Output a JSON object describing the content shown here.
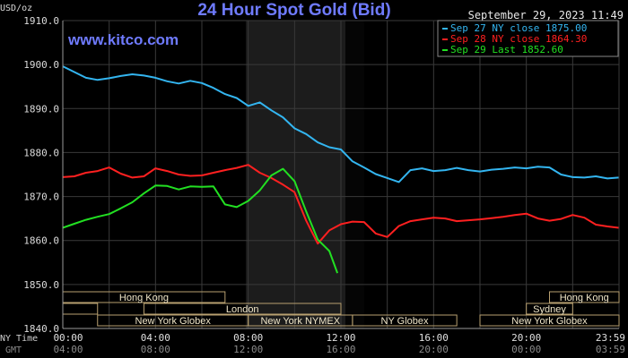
{
  "chart_data": {
    "type": "line",
    "title": "24 Hour Spot Gold (Bid)",
    "watermark": "www.kitco.com",
    "timestamp": "September 29, 2023 11:49",
    "y_unit_label": "USD/oz",
    "ylim": [
      1840,
      1910
    ],
    "yticks": [
      "1910.0",
      "1900.0",
      "1890.0",
      "1880.0",
      "1870.0",
      "1860.0",
      "1850.0",
      "1840.0"
    ],
    "xlim": [
      0,
      24
    ],
    "xticks_ny": [
      "00:00",
      "04:00",
      "08:00",
      "12:00",
      "16:00",
      "20:00",
      "23:59"
    ],
    "xticks_gmt": [
      "04:00",
      "08:00",
      "12:00",
      "16:00",
      "20:00",
      "00:00",
      "03:59"
    ],
    "xaxis_row_labels": [
      "NY Time",
      "GMT"
    ],
    "shaded_x_range": [
      7.9,
      12.2
    ],
    "dark_band_x_range": [
      12.2,
      13.0
    ],
    "grid": true,
    "legend_position": "top-right",
    "legend": [
      {
        "label": "Sep 27 NY close 1875.00",
        "color": "#33b5f0"
      },
      {
        "label": "Sep 28 NY close 1864.30",
        "color": "#ff2020"
      },
      {
        "label": "Sep 29 Last 1852.60",
        "color": "#22e022"
      }
    ],
    "series": [
      {
        "name": "Sep 27 NY close 1875.00",
        "color": "#33b5f0",
        "x": [
          0,
          0.5,
          1,
          1.5,
          2,
          2.5,
          3,
          3.5,
          4,
          4.5,
          5,
          5.5,
          6,
          6.5,
          7,
          7.5,
          8,
          8.5,
          9,
          9.5,
          10,
          10.5,
          11,
          11.5,
          12,
          12.5,
          13,
          13.5,
          14,
          14.5,
          15,
          15.5,
          16,
          16.5,
          17,
          17.5,
          18,
          18.5,
          19,
          19.5,
          20,
          20.5,
          21,
          21.5,
          22,
          22.5,
          23,
          23.5,
          23.98
        ],
        "values": [
          1899.6,
          1898.3,
          1897.0,
          1896.5,
          1896.9,
          1897.4,
          1897.8,
          1897.5,
          1897.0,
          1896.2,
          1895.7,
          1896.3,
          1895.8,
          1894.7,
          1893.3,
          1892.4,
          1890.6,
          1891.4,
          1889.6,
          1888.0,
          1885.5,
          1884.2,
          1882.3,
          1881.2,
          1880.7,
          1878.0,
          1876.6,
          1875.1,
          1874.2,
          1873.3,
          1876.0,
          1876.4,
          1875.8,
          1876.0,
          1876.5,
          1876.0,
          1875.7,
          1876.1,
          1876.3,
          1876.6,
          1876.4,
          1876.8,
          1876.6,
          1875.0,
          1874.4,
          1874.3,
          1874.6,
          1874.1,
          1874.3
        ]
      },
      {
        "name": "Sep 28 NY close 1864.30",
        "color": "#ff2020",
        "x": [
          0,
          0.5,
          1,
          1.5,
          2,
          2.5,
          3,
          3.5,
          4,
          4.5,
          5,
          5.5,
          6,
          6.5,
          7,
          7.5,
          8,
          8.5,
          9,
          9.5,
          10,
          10.5,
          11,
          11.5,
          12,
          12.5,
          13,
          13.5,
          14,
          14.5,
          15,
          15.5,
          16,
          16.5,
          17,
          17.5,
          18,
          18.5,
          19,
          19.5,
          20,
          20.5,
          21,
          21.5,
          22,
          22.5,
          23,
          23.5,
          23.98
        ],
        "values": [
          1874.4,
          1874.6,
          1875.4,
          1875.8,
          1876.6,
          1875.2,
          1874.3,
          1874.6,
          1876.4,
          1875.8,
          1875.0,
          1874.7,
          1874.8,
          1875.4,
          1876.0,
          1876.5,
          1877.2,
          1875.4,
          1874.2,
          1872.7,
          1871.0,
          1864.5,
          1859.3,
          1862.3,
          1863.7,
          1864.3,
          1864.2,
          1861.6,
          1860.8,
          1863.3,
          1864.4,
          1864.8,
          1865.2,
          1865.0,
          1864.4,
          1864.6,
          1864.8,
          1865.1,
          1865.4,
          1865.8,
          1866.1,
          1865.0,
          1864.5,
          1864.9,
          1865.8,
          1865.2,
          1863.6,
          1863.2,
          1862.9
        ]
      },
      {
        "name": "Sep 29 Last 1852.60",
        "color": "#22e022",
        "x": [
          0,
          0.5,
          1,
          1.5,
          2,
          2.5,
          3,
          3.5,
          4,
          4.5,
          5,
          5.5,
          6,
          6.5,
          7,
          7.5,
          8,
          8.5,
          9,
          9.5,
          10,
          10.5,
          11,
          11.5,
          11.85
        ],
        "values": [
          1862.9,
          1863.8,
          1864.7,
          1865.4,
          1866.0,
          1867.3,
          1868.7,
          1870.7,
          1872.5,
          1872.4,
          1871.6,
          1872.3,
          1872.2,
          1872.3,
          1868.2,
          1867.6,
          1869.0,
          1871.4,
          1874.8,
          1876.3,
          1873.5,
          1866.6,
          1860.2,
          1857.6,
          1852.6
        ]
      }
    ],
    "session_bands": [
      {
        "label": "Hong Kong",
        "x_start": 0,
        "x_end": 7.0,
        "row": 1
      },
      {
        "label": "",
        "x_start": 0,
        "x_end": 1.5,
        "row": 2
      },
      {
        "label": "London",
        "x_start": 3.5,
        "x_end": 12.0,
        "row": 2
      },
      {
        "label": "New York Globex",
        "x_start": 1.5,
        "x_end": 8.0,
        "row": 3
      },
      {
        "label": "New York NYMEX",
        "x_start": 8.0,
        "x_end": 12.5,
        "row": 3
      },
      {
        "label": "NY Globex",
        "x_start": 12.5,
        "x_end": 17.0,
        "row": 3
      },
      {
        "label": "Hong Kong",
        "x_start": 21.0,
        "x_end": 24.0,
        "row": 1
      },
      {
        "label": "Sydney",
        "x_start": 20.0,
        "x_end": 22.0,
        "row": 2
      },
      {
        "label": "New York Globex",
        "x_start": 18.0,
        "x_end": 24.0,
        "row": 3
      }
    ]
  }
}
